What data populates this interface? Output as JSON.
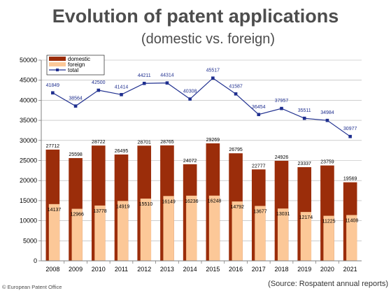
{
  "page": {
    "footer_left": "© European Patent Office",
    "footer_right": "(Source: Rospatent annual reports)"
  },
  "chart_data": {
    "type": "bar",
    "title": "Evolution of patent applications",
    "subtitle": "(domestic vs. foreign)",
    "categories": [
      "2008",
      "2009",
      "2010",
      "2011",
      "2012",
      "2013",
      "2014",
      "2015",
      "2016",
      "2017",
      "2018",
      "2019",
      "2020",
      "2021"
    ],
    "series": [
      {
        "name": "domestic",
        "type": "bar",
        "color": "#9b2d0a",
        "values": [
          27712,
          25598,
          28722,
          26495,
          28701,
          28765,
          24072,
          29269,
          26795,
          22777,
          24926,
          23337,
          23759,
          19569
        ]
      },
      {
        "name": "foreign",
        "type": "bar",
        "color": "#fcc898",
        "values": [
          14137,
          12966,
          13778,
          14919,
          15510,
          16149,
          16236,
          16248,
          14792,
          13677,
          13031,
          12174,
          11225,
          11408
        ]
      },
      {
        "name": "total",
        "type": "line",
        "color": "#1f2f8f",
        "values": [
          41849,
          38564,
          42500,
          41414,
          44211,
          44314,
          40308,
          45517,
          41587,
          36454,
          37957,
          35511,
          34984,
          30977
        ]
      }
    ],
    "ylim": [
      0,
      50000
    ],
    "yticks": [
      0,
      5000,
      10000,
      15000,
      20000,
      25000,
      30000,
      35000,
      40000,
      45000,
      50000
    ],
    "grid": true,
    "legend": "top-left"
  }
}
